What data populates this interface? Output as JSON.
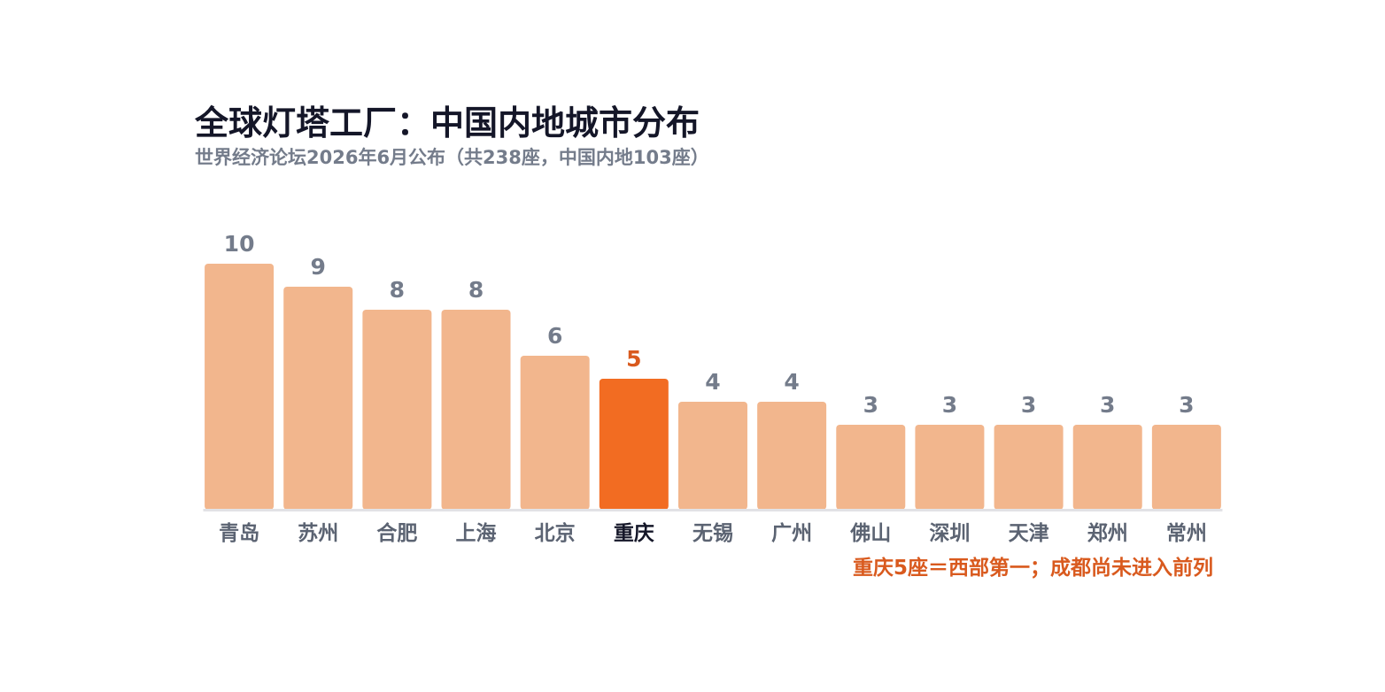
{
  "chart_data": {
    "type": "bar",
    "title": "全球灯塔工厂：中国内地城市分布",
    "subtitle": "世界经济论坛2026年6月公布（共238座，中国内地103座）",
    "categories": [
      "青岛",
      "苏州",
      "合肥",
      "上海",
      "北京",
      "重庆",
      "无锡",
      "广州",
      "佛山",
      "深圳",
      "天津",
      "郑州",
      "常州"
    ],
    "values": [
      10,
      9,
      8,
      8,
      6,
      5,
      4,
      4,
      3,
      3,
      3,
      3,
      3
    ],
    "highlight": "重庆",
    "annotation": "重庆5座＝西部第一；成都尚未进入前列",
    "xlabel": "",
    "ylabel": "",
    "ylim": [
      0,
      10
    ],
    "grid": false,
    "legend": "none",
    "colors": {
      "bar": "#f2b68d",
      "highlight_bar": "#f26c22",
      "value_label": "#747c8b",
      "highlight_value_label": "#d95a1e",
      "category_label": "#5b6372",
      "highlight_category_label": "#141628",
      "baseline": "#e2e2e6",
      "title": "#141628",
      "subtitle": "#747c8b",
      "annotation": "#d95a1e"
    }
  }
}
